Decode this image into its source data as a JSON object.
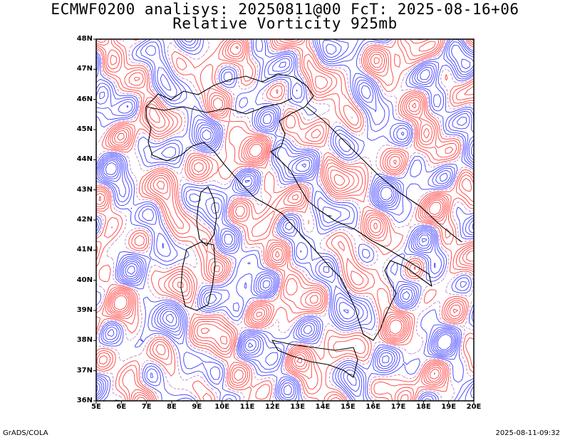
{
  "title": {
    "line1": "ECMWF0200 analisys: 20250811@00 FcT: 2025-08-16+06",
    "line2": "Relative Vorticity 925mb"
  },
  "map": {
    "lon_range": [
      5,
      20
    ],
    "lat_range": [
      36,
      48
    ],
    "lon_labels": [
      "5E",
      "6E",
      "7E",
      "8E",
      "9E",
      "10E",
      "11E",
      "12E",
      "13E",
      "14E",
      "15E",
      "16E",
      "17E",
      "18E",
      "19E",
      "20E"
    ],
    "lat_labels": [
      "48N",
      "47N",
      "46N",
      "45N",
      "44N",
      "43N",
      "42N",
      "41N",
      "40N",
      "39N",
      "38N",
      "37N",
      "36N"
    ],
    "colors": {
      "positive_contour": "#ff3c3c",
      "negative_contour": "#3c3cff",
      "coastline": "#000000",
      "zero_contour": "#c080c0"
    }
  },
  "footer": {
    "left": "GrADS/COLA",
    "right": "2025-08-11-09:32"
  }
}
